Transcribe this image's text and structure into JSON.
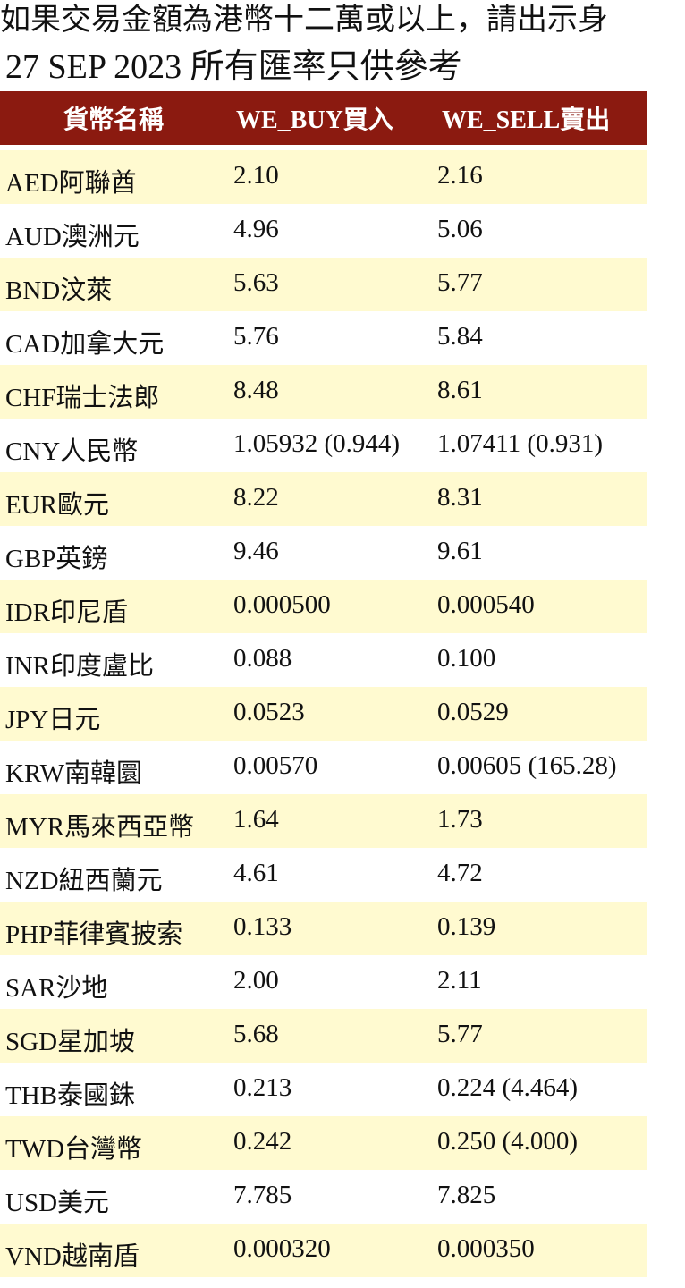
{
  "notice": "如果交易金額為港幣十二萬或以上，請出示身",
  "date_line": "27 SEP 2023 所有匯率只供參考",
  "table": {
    "headers": {
      "currency": "貨幣名稱",
      "buy": "WE_BUY買入",
      "sell": "WE_SELL賣出"
    },
    "rows": [
      {
        "currency": "AED阿聯酋",
        "buy": "2.10",
        "sell": "2.16"
      },
      {
        "currency": "AUD澳洲元",
        "buy": "4.96",
        "sell": "5.06"
      },
      {
        "currency": "BND汶萊",
        "buy": "5.63",
        "sell": "5.77"
      },
      {
        "currency": "CAD加拿大元",
        "buy": "5.76",
        "sell": "5.84"
      },
      {
        "currency": "CHF瑞士法郎",
        "buy": "8.48",
        "sell": "8.61"
      },
      {
        "currency": "CNY人民幣",
        "buy": "1.05932 (0.944)",
        "sell": "1.07411 (0.931)"
      },
      {
        "currency": "EUR歐元",
        "buy": "8.22",
        "sell": "8.31"
      },
      {
        "currency": "GBP英鎊",
        "buy": "9.46",
        "sell": "9.61"
      },
      {
        "currency": "IDR印尼盾",
        "buy": "0.000500",
        "sell": "0.000540"
      },
      {
        "currency": "INR印度盧比",
        "buy": "0.088",
        "sell": "0.100"
      },
      {
        "currency": "JPY日元",
        "buy": "0.0523",
        "sell": "0.0529"
      },
      {
        "currency": "KRW南韓圜",
        "buy": "0.00570",
        "sell": "0.00605 (165.28)"
      },
      {
        "currency": "MYR馬來西亞幣",
        "buy": "1.64",
        "sell": "1.73"
      },
      {
        "currency": "NZD紐西蘭元",
        "buy": "4.61",
        "sell": "4.72"
      },
      {
        "currency": "PHP菲律賓披索",
        "buy": "0.133",
        "sell": "0.139"
      },
      {
        "currency": "SAR沙地",
        "buy": "2.00",
        "sell": "2.11"
      },
      {
        "currency": "SGD星加坡",
        "buy": "5.68",
        "sell": "5.77"
      },
      {
        "currency": "THB泰國銖",
        "buy": "0.213",
        "sell": "0.224 (4.464)"
      },
      {
        "currency": "TWD台灣幣",
        "buy": "0.242",
        "sell": "0.250 (4.000)"
      },
      {
        "currency": "USD美元",
        "buy": "7.785",
        "sell": "7.825"
      },
      {
        "currency": "VND越南盾",
        "buy": "0.000320",
        "sell": "0.000350"
      }
    ]
  },
  "colors": {
    "header_background": "#8b1a10",
    "header_text": "#ffffff",
    "row_stripe": "#fffad0",
    "row_plain": "#ffffff"
  }
}
